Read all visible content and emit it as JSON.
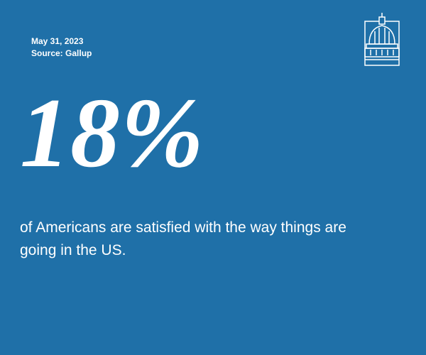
{
  "header": {
    "date": "May 31, 2023",
    "source": "Source: Gallup"
  },
  "stat": {
    "value": "18%",
    "caption": "of Americans are satisfied with the way things are going in the US."
  }
}
